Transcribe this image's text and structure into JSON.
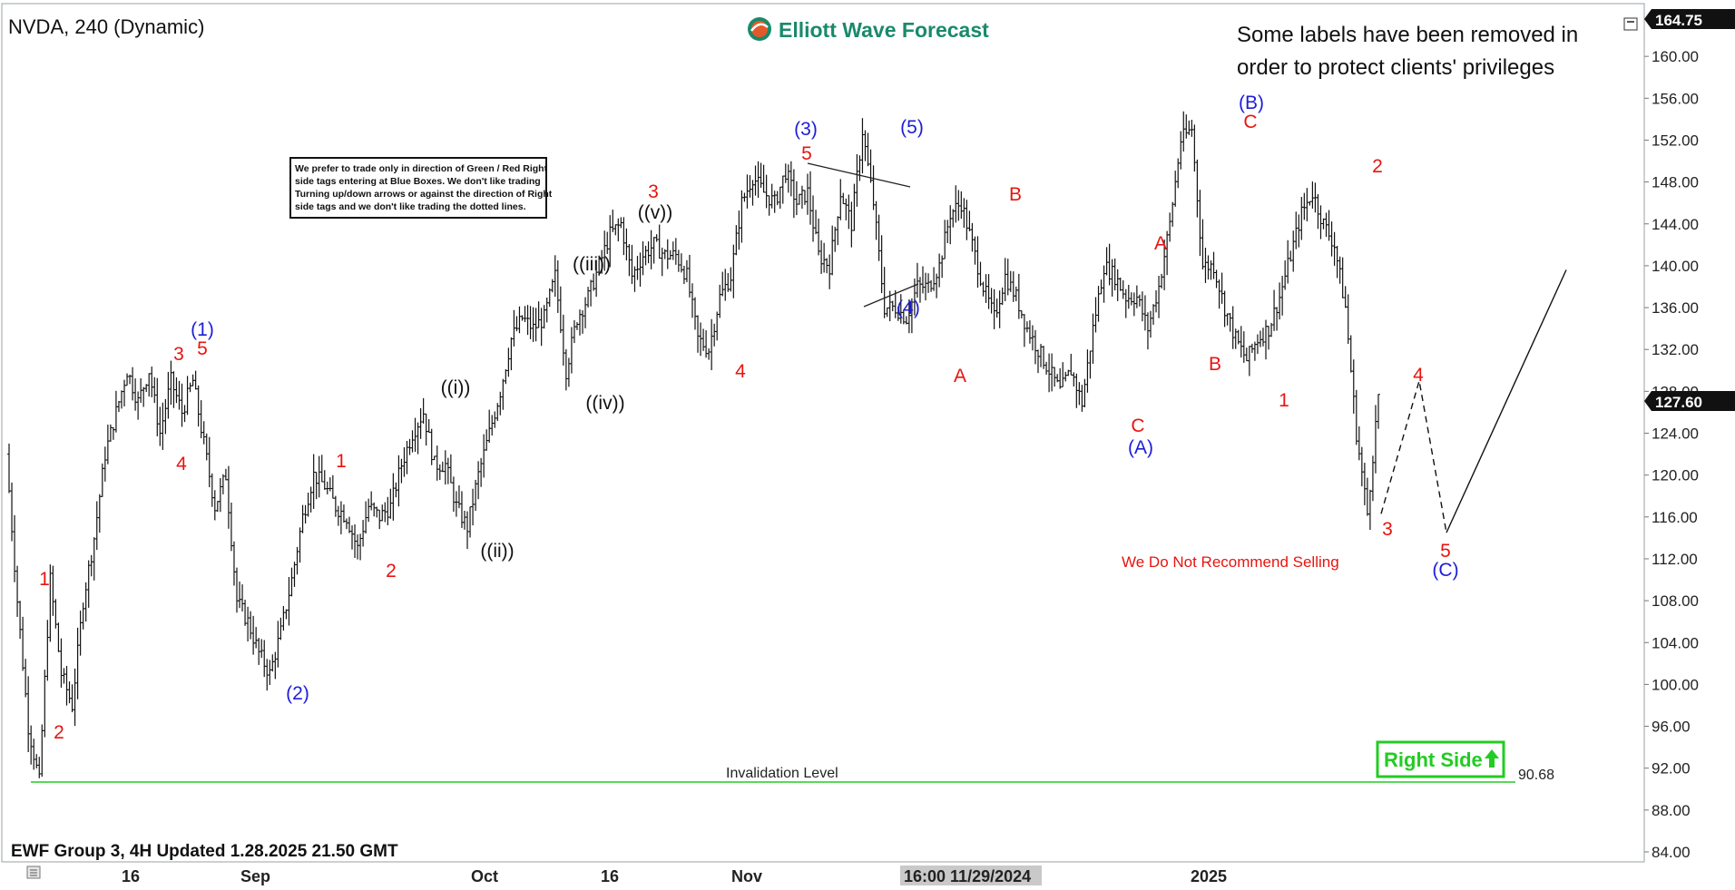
{
  "header": {
    "symbol_title": "NVDA, 240 (Dynamic)",
    "brand": "Elliott Wave Forecast",
    "notice_line1": "Some labels have been removed in",
    "notice_line2": "order to protect clients' privileges"
  },
  "disclaimer": [
    "We prefer to trade only in direction of Green / Red Right",
    "side tags entering at Blue Boxes. We don't like trading",
    "Turning up/down arrows or against the direction of Right",
    "side tags and we don't like trading the dotted lines."
  ],
  "footer": {
    "updated": "EWF Group 3, 4H Updated 1.28.2025 21.50 GMT"
  },
  "annotations": {
    "warning": "We Do Not Recommend Selling",
    "invalidation_label": "Invalidation Level",
    "invalidation_value": "90.68",
    "right_side": "Right Side"
  },
  "price_tags": {
    "top": "164.75",
    "current": "127.60",
    "crosshair_time": "16:00 11/29/2024"
  },
  "colors": {
    "red_label": "#e8140f",
    "blue_label": "#1d1dd8",
    "invalidation_line": "#22cc22",
    "right_side_green": "#22cc22",
    "price_tag_bg": "#111111"
  },
  "chart_data": {
    "type": "line",
    "title": "NVDA, 240 (Dynamic)",
    "xlabel": "",
    "ylabel": "",
    "ylim": [
      83,
      165.5
    ],
    "y_ticks": [
      "84.00",
      "88.00",
      "92.00",
      "96.00",
      "100.00",
      "104.00",
      "108.00",
      "112.00",
      "116.00",
      "120.00",
      "124.00",
      "128.00",
      "132.00",
      "136.00",
      "140.00",
      "144.00",
      "148.00",
      "152.00",
      "156.00",
      "160.00",
      "164.75"
    ],
    "x_tick_labels": [
      "16",
      "Sep",
      "Oct",
      "16",
      "Nov",
      "16:00 11/29/2024",
      "2025"
    ],
    "grid": false,
    "series": [
      {
        "points": [
          [
            "Aug 05",
            122
          ],
          [
            "Aug 06",
            108
          ],
          [
            "Aug 07",
            96
          ],
          [
            "Aug 07b",
            90.68
          ],
          [
            "Aug 08",
            110
          ],
          [
            "Aug 09",
            101
          ],
          [
            "Aug 12",
            98
          ],
          [
            "Aug 13",
            108
          ],
          [
            "Aug 14",
            114
          ],
          [
            "Aug 15",
            122
          ],
          [
            "Aug 16",
            126
          ],
          [
            "Aug 19",
            130
          ],
          [
            "Aug 20",
            127
          ],
          [
            "Aug 21",
            130
          ],
          [
            "Aug 22",
            124
          ],
          [
            "Aug 23",
            129
          ],
          [
            "Aug 26",
            126
          ],
          [
            "Aug 27",
            129
          ],
          [
            "Aug 28",
            123
          ],
          [
            "Aug 29",
            117
          ],
          [
            "Aug 30",
            120
          ],
          [
            "Sep 03",
            108
          ],
          [
            "Sep 04",
            106
          ],
          [
            "Sep 05",
            103
          ],
          [
            "Sep 06",
            101
          ],
          [
            "Sep 09",
            105
          ],
          [
            "Sep 10",
            110
          ],
          [
            "Sep 11",
            116
          ],
          [
            "Sep 12",
            120
          ],
          [
            "Sep 13",
            119
          ],
          [
            "Sep 16",
            117
          ],
          [
            "Sep 17",
            116
          ],
          [
            "Sep 18",
            113
          ],
          [
            "Sep 19",
            117
          ],
          [
            "Sep 20",
            116
          ],
          [
            "Sep 23",
            117
          ],
          [
            "Sep 24",
            121
          ],
          [
            "Sep 25",
            124
          ],
          [
            "Sep 26",
            126
          ],
          [
            "Sep 27",
            121
          ],
          [
            "Sep 30",
            121
          ],
          [
            "Oct 01",
            117
          ],
          [
            "Oct 02",
            115
          ],
          [
            "Oct 03",
            120
          ],
          [
            "Oct 04",
            124
          ],
          [
            "Oct 07",
            128
          ],
          [
            "Oct 08",
            133
          ],
          [
            "Oct 09",
            135
          ],
          [
            "Oct 10",
            134
          ],
          [
            "Oct 11",
            135
          ],
          [
            "Oct 14",
            139
          ],
          [
            "Oct 15",
            130
          ],
          [
            "Oct 16",
            135
          ],
          [
            "Oct 17",
            137
          ],
          [
            "Oct 18",
            140
          ],
          [
            "Oct 21",
            143
          ],
          [
            "Oct 22",
            144
          ],
          [
            "Oct 23",
            139
          ],
          [
            "Oct 24",
            141
          ],
          [
            "Oct 25",
            142
          ],
          [
            "Oct 28",
            141
          ],
          [
            "Oct 29",
            141
          ],
          [
            "Oct 30",
            139
          ],
          [
            "Oct 31",
            133
          ],
          [
            "Nov 01",
            132
          ],
          [
            "Nov 04",
            137
          ],
          [
            "Nov 05",
            139
          ],
          [
            "Nov 06",
            146
          ],
          [
            "Nov 07",
            148.5
          ],
          [
            "Nov 08",
            147
          ],
          [
            "Nov 11",
            146
          ],
          [
            "Nov 12",
            149
          ],
          [
            "Nov 13",
            146
          ],
          [
            "Nov 14",
            147
          ],
          [
            "Nov 15",
            141
          ],
          [
            "Nov 18",
            140
          ],
          [
            "Nov 19",
            147
          ],
          [
            "Nov 20",
            144
          ],
          [
            "Nov 21",
            152.9
          ],
          [
            "Nov 22",
            146
          ],
          [
            "Nov 25",
            136
          ],
          [
            "Nov 26",
            136
          ],
          [
            "Nov 27",
            135
          ],
          [
            "Nov 29",
            138
          ],
          [
            "Dec 02",
            138
          ],
          [
            "Dec 03",
            140
          ],
          [
            "Dec 04",
            145
          ],
          [
            "Dec 05",
            146
          ],
          [
            "Dec 06",
            142
          ],
          [
            "Dec 09",
            138
          ],
          [
            "Dec 10",
            135
          ],
          [
            "Dec 11",
            139
          ],
          [
            "Dec 12",
            137
          ],
          [
            "Dec 13",
            134
          ],
          [
            "Dec 16",
            132
          ],
          [
            "Dec 17",
            130
          ],
          [
            "Dec 18",
            128
          ],
          [
            "Dec 19",
            130
          ],
          [
            "Dec 20",
            126.9
          ],
          [
            "Dec 23",
            134
          ],
          [
            "Dec 24",
            140
          ],
          [
            "Dec 26",
            139
          ],
          [
            "Dec 27",
            137
          ],
          [
            "Dec 30",
            137
          ],
          [
            "Dec 31",
            134
          ],
          [
            "Jan 02",
            138
          ],
          [
            "Jan 03",
            144
          ],
          [
            "Jan 06",
            152
          ],
          [
            "Jan 07",
            153.1
          ],
          [
            "Jan 08",
            140
          ],
          [
            "Jan 09",
            140
          ],
          [
            "Jan 10",
            136
          ],
          [
            "Jan 13",
            133
          ],
          [
            "Jan 14",
            131
          ],
          [
            "Jan 15",
            133
          ],
          [
            "Jan 16",
            134
          ],
          [
            "Jan 17",
            137
          ],
          [
            "Jan 21",
            141
          ],
          [
            "Jan 22",
            145
          ],
          [
            "Jan 23",
            147
          ],
          [
            "Jan 24",
            144
          ],
          [
            "Jan 24b",
            142
          ],
          [
            "Jan 27",
            136
          ],
          [
            "Jan 27b",
            124
          ],
          [
            "Jan 27c",
            116.3
          ],
          [
            "Jan 28",
            127.6
          ]
        ]
      }
    ],
    "projection": {
      "dashed": [
        [
          "wave 3 low",
          116.3
        ],
        [
          "wave 4",
          129
        ],
        [
          "wave 5 (C)",
          114.5
        ]
      ],
      "solid": [
        [
          "wave 5 (C)",
          114.5
        ],
        [
          "target",
          139.6
        ]
      ]
    },
    "wave_labels": [
      "(1)",
      "(2)",
      "(3)",
      "(4)",
      "(5)",
      "(A)",
      "(B)",
      "(C)",
      "((i))",
      "((ii))",
      "((iii))",
      "((iv))",
      "((v))",
      "1",
      "2",
      "3",
      "4",
      "5",
      "A",
      "B",
      "C"
    ]
  }
}
